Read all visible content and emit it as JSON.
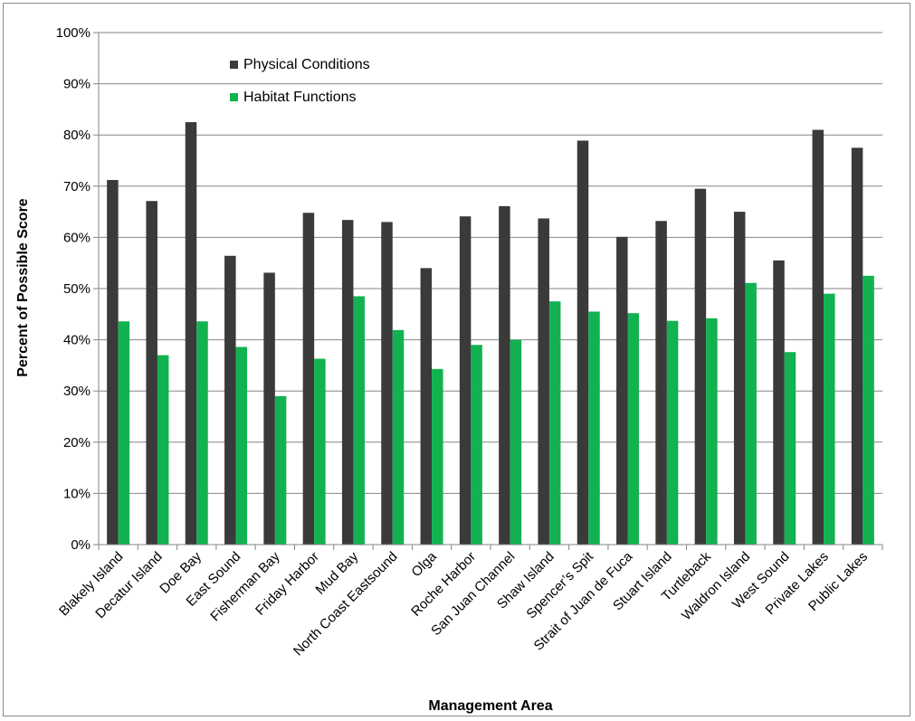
{
  "chart_data": {
    "type": "bar",
    "xlabel": "Management Area",
    "ylabel": "Percent of Possible Score",
    "ylim": [
      0,
      100
    ],
    "yticks": [
      "0%",
      "10%",
      "20%",
      "30%",
      "40%",
      "50%",
      "60%",
      "70%",
      "80%",
      "90%",
      "100%"
    ],
    "grid": true,
    "legend_position": "top-left",
    "categories": [
      "Blakely Island",
      "Decatur Island",
      "Doe Bay",
      "East Sound",
      "Fisherman Bay",
      "Friday Harbor",
      "Mud Bay",
      "North Coast Eastsound",
      "Olga",
      "Roche Harbor",
      "San Juan Channel",
      "Shaw Island",
      "Spencer’s Spit",
      "Strait of Juan de Fuca",
      "Stuart Island",
      "Turtleback",
      "Waldron Island",
      "West Sound",
      "Private Lakes",
      "Public Lakes"
    ],
    "series": [
      {
        "name": "Physical Conditions",
        "color": "#3a3a3a",
        "values": [
          71.2,
          67.1,
          82.5,
          56.4,
          53.1,
          64.8,
          63.4,
          63.0,
          54.0,
          64.1,
          66.1,
          63.7,
          78.9,
          60.1,
          63.2,
          69.5,
          65.0,
          55.5,
          81.0,
          77.5
        ]
      },
      {
        "name": "Habitat Functions",
        "color": "#12b251",
        "values": [
          43.6,
          37.0,
          43.6,
          38.6,
          29.0,
          36.3,
          48.5,
          41.9,
          34.3,
          39.0,
          40.0,
          47.5,
          45.5,
          45.2,
          43.7,
          44.2,
          51.1,
          37.6,
          49.0,
          52.5
        ]
      }
    ]
  }
}
